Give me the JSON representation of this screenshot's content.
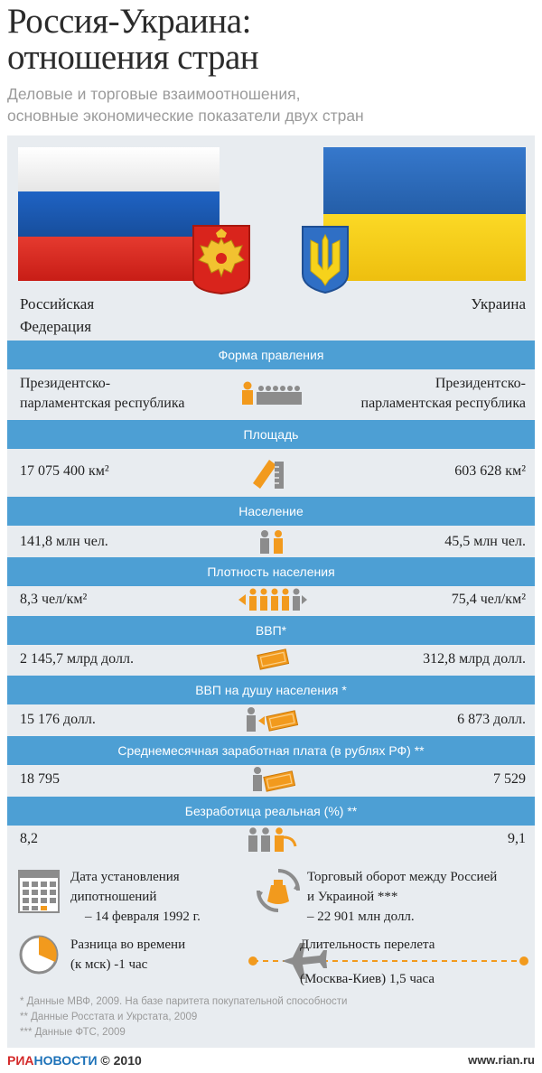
{
  "title": [
    "Россия-Украина:",
    "отношения стран"
  ],
  "subtitle": [
    "Деловые и торговые взаимоотношения,",
    "основные экономические показатели двух стран"
  ],
  "countries": {
    "left": [
      "Российская",
      "Федерация"
    ],
    "right": "Украина"
  },
  "rows": [
    {
      "header": "Форма правления",
      "left": [
        "Президентско-",
        "парламентская республика"
      ],
      "right": [
        "Президентско-",
        "парламентская республика"
      ],
      "icon": "parliament-icon"
    },
    {
      "header": "Площадь",
      "left": "17 075 400 км²",
      "right": "603 628 км²",
      "icon": "ruler-icon"
    },
    {
      "header": "Население",
      "left": "141,8 млн чел.",
      "right": "45,5  млн чел.",
      "icon": "people-icon"
    },
    {
      "header": "Плотность населения",
      "left": "8,3 чел/км²",
      "right": "75,4  чел/км²",
      "icon": "crowd-icon"
    },
    {
      "header": "ВВП*",
      "left": "2 145,7 млрд долл.",
      "right": "312,8  млрд долл.",
      "icon": "money-icon"
    },
    {
      "header": "ВВП на душу населения *",
      "left": "15 176 долл.",
      "right": "6 873  долл.",
      "icon": "person-money-icon"
    },
    {
      "header": "Среднемесячная заработная плата (в рублях РФ) **",
      "left": "18 795",
      "right": "7 529",
      "icon": "salary-icon"
    },
    {
      "header": "Безработица реальная (%) **",
      "left": "8,2",
      "right": "9,1",
      "icon": "unemployment-icon"
    }
  ],
  "info": {
    "diplomacy": [
      "Дата установления",
      "дипотношений",
      "– 14 февраля 1992 г."
    ],
    "trade": [
      "Торговый оборот между Россией",
      "и  Украиной ***",
      "– 22 901  млн долл."
    ],
    "time": [
      "Разница во времени",
      "(к мск) -1 час"
    ],
    "flight": [
      "Длительность перелета",
      "(Москва-Киев) 1,5 часа"
    ]
  },
  "footnotes": [
    "* Данные МВФ, 2009. На базе паритета покупательной способности",
    "** Данные Росстата и Укрстата, 2009",
    "*** Данные ФТС, 2009"
  ],
  "brand": {
    "ria": "РИА",
    "novosti": "НОВОСТИ",
    "copyright": " © 2010"
  },
  "site": "www.rian.ru",
  "colors": {
    "bar": "#4d9fd4",
    "orange": "#f29a1d",
    "gray_icon": "#8c8c8c",
    "ru_white": "#f4f4f4",
    "ru_blue": "#1e5bb8",
    "ru_red": "#e0261f",
    "ua_blue": "#2f6fc5",
    "ua_yellow": "#f6d21b"
  }
}
